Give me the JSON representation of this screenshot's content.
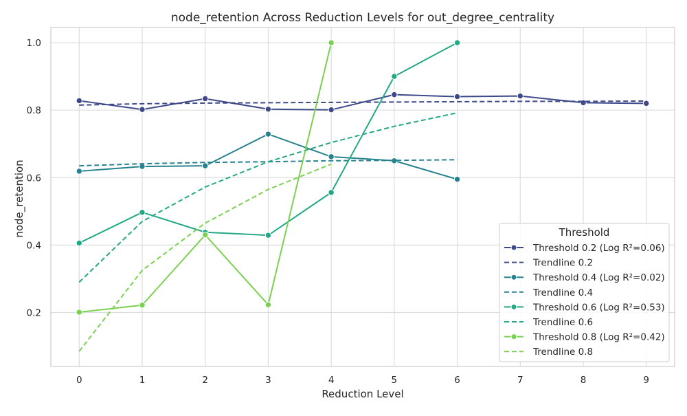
{
  "chart_data": {
    "type": "line",
    "title": "node_retention Across Reduction Levels for out_degree_centrality",
    "xlabel": "Reduction Level",
    "ylabel": "node_retention",
    "x_ticks": [
      0,
      1,
      2,
      3,
      4,
      5,
      6,
      7,
      8,
      9
    ],
    "y_ticks": [
      0.2,
      0.4,
      0.6,
      0.8,
      1.0
    ],
    "y_tick_labels": [
      "0.2",
      "0.4",
      "0.6",
      "0.8",
      "1.0"
    ],
    "xlim": [
      -0.45,
      9.45
    ],
    "ylim": [
      0.04,
      1.045
    ],
    "grid": true,
    "legend": {
      "title": "Threshold",
      "placement": "bottom-right"
    },
    "series": [
      {
        "name": "Threshold 0.2 (Log R²=0.06)",
        "style": "solid-marker",
        "color": "#3e4989",
        "x": [
          0,
          1,
          2,
          3,
          4,
          5,
          6,
          7,
          8,
          9
        ],
        "values": [
          0.828,
          0.802,
          0.834,
          0.803,
          0.801,
          0.846,
          0.84,
          0.842,
          0.822,
          0.82
        ]
      },
      {
        "name": "Trendline 0.2",
        "style": "dashed",
        "color": "#3e4989",
        "x": [
          0,
          1,
          2,
          3,
          4,
          5,
          6,
          7,
          8,
          9
        ],
        "values": [
          0.815,
          0.819,
          0.821,
          0.822,
          0.823,
          0.824,
          0.825,
          0.826,
          0.826,
          0.827
        ]
      },
      {
        "name": "Threshold 0.4 (Log R²=0.02)",
        "style": "solid-marker",
        "color": "#26828e",
        "x": [
          0,
          1,
          2,
          3,
          4,
          5,
          6
        ],
        "values": [
          0.619,
          0.633,
          0.635,
          0.729,
          0.662,
          0.65,
          0.595
        ]
      },
      {
        "name": "Trendline 0.4",
        "style": "dashed",
        "color": "#26828e",
        "x": [
          0,
          1,
          2,
          3,
          4,
          5,
          6
        ],
        "values": [
          0.635,
          0.641,
          0.645,
          0.647,
          0.65,
          0.651,
          0.653
        ]
      },
      {
        "name": "Threshold 0.6 (Log R²=0.53)",
        "style": "solid-marker",
        "color": "#22a884",
        "x": [
          0,
          1,
          2,
          3,
          4,
          5,
          6
        ],
        "values": [
          0.406,
          0.497,
          0.438,
          0.429,
          0.556,
          0.9,
          1.0
        ]
      },
      {
        "name": "Trendline 0.6",
        "style": "dashed",
        "color": "#22a884",
        "x": [
          0,
          1,
          2,
          3,
          4,
          5,
          6
        ],
        "values": [
          0.29,
          0.47,
          0.572,
          0.647,
          0.704,
          0.752,
          0.792
        ]
      },
      {
        "name": "Threshold 0.8 (Log R²=0.42)",
        "style": "solid-marker",
        "color": "#7ad151",
        "x": [
          0,
          1,
          2,
          3,
          4
        ],
        "values": [
          0.201,
          0.222,
          0.43,
          0.223,
          1.0
        ]
      },
      {
        "name": "Trendline 0.8",
        "style": "dashed",
        "color": "#7ad151",
        "x": [
          0,
          1,
          2,
          3,
          4
        ],
        "values": [
          0.085,
          0.325,
          0.465,
          0.565,
          0.64
        ]
      }
    ]
  }
}
